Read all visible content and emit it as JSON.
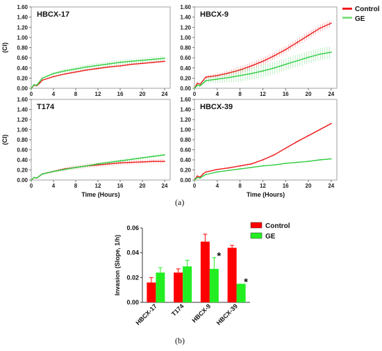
{
  "figure_labels": {
    "a": "(a)",
    "b": "(b)"
  },
  "colors": {
    "control": "#ee1c1c",
    "ge": "#2ecc40",
    "bar_control": "#ff0000",
    "bar_ge": "#22ee22"
  },
  "legend_top": [
    {
      "label": "Control",
      "color": "#ee1c1c"
    },
    {
      "label": "GE",
      "color": "#7fe07f"
    }
  ],
  "legend_bottom": [
    {
      "label": "Control",
      "color": "#ff0000"
    },
    {
      "label": "GE",
      "color": "#22ee22"
    }
  ],
  "chart_data": [
    {
      "type": "line",
      "title": "HBCX-17",
      "xlabel": "",
      "ylabel": "(CI)",
      "xlim": [
        0,
        25
      ],
      "ylim": [
        0,
        1.6
      ],
      "xticks": [
        "0",
        "4",
        "8",
        "12",
        "16",
        "20",
        "24"
      ],
      "yticks": [
        "1.60",
        "1.40",
        "1.20",
        "1.00",
        "0.80",
        "0.60",
        "0.40",
        "0.20",
        "0.00"
      ],
      "series": [
        {
          "name": "Control",
          "x": [
            0,
            0.5,
            1,
            1.5,
            2,
            4,
            6,
            8,
            10,
            12,
            14,
            16,
            18,
            20,
            22,
            24
          ],
          "values": [
            0,
            0.06,
            0.05,
            0.1,
            0.16,
            0.23,
            0.28,
            0.32,
            0.36,
            0.39,
            0.42,
            0.44,
            0.47,
            0.49,
            0.51,
            0.53
          ],
          "err": 0.02
        },
        {
          "name": "GE",
          "x": [
            0,
            0.5,
            1,
            1.5,
            2,
            4,
            6,
            8,
            10,
            12,
            14,
            16,
            18,
            20,
            22,
            24
          ],
          "values": [
            0,
            0.07,
            0.06,
            0.13,
            0.2,
            0.29,
            0.34,
            0.38,
            0.42,
            0.45,
            0.48,
            0.51,
            0.53,
            0.55,
            0.57,
            0.59
          ],
          "err": 0.05
        }
      ]
    },
    {
      "type": "line",
      "title": "HBCX-9",
      "xlabel": "",
      "ylabel": "",
      "xlim": [
        0,
        25
      ],
      "ylim": [
        0,
        1.6
      ],
      "xticks": [
        "0",
        "4",
        "8",
        "12",
        "16",
        "20",
        "24"
      ],
      "yticks": [
        "1.60",
        "1.40",
        "1.20",
        "1.00",
        "0.80",
        "0.60",
        "0.40",
        "0.20",
        "0.00"
      ],
      "series": [
        {
          "name": "Control",
          "x": [
            0,
            0.5,
            1,
            1.5,
            2,
            4,
            6,
            8,
            10,
            12,
            14,
            16,
            18,
            20,
            22,
            24
          ],
          "values": [
            0,
            0.1,
            0.08,
            0.15,
            0.22,
            0.25,
            0.3,
            0.36,
            0.44,
            0.53,
            0.64,
            0.76,
            0.9,
            1.04,
            1.18,
            1.28
          ],
          "err": 0.07
        },
        {
          "name": "GE",
          "x": [
            0,
            0.5,
            1,
            1.5,
            2,
            4,
            6,
            8,
            10,
            12,
            14,
            16,
            18,
            20,
            22,
            24
          ],
          "values": [
            0,
            0.06,
            0.05,
            0.1,
            0.15,
            0.18,
            0.21,
            0.25,
            0.29,
            0.34,
            0.4,
            0.47,
            0.54,
            0.61,
            0.67,
            0.71
          ],
          "err": 0.12
        }
      ]
    },
    {
      "type": "line",
      "title": "T174",
      "xlabel": "Time (Hours)",
      "ylabel": "(CI)",
      "xlim": [
        0,
        25
      ],
      "ylim": [
        0,
        1.6
      ],
      "xticks": [
        "0",
        "4",
        "8",
        "12",
        "16",
        "20",
        "24"
      ],
      "yticks": [
        "1.60",
        "1.40",
        "1.20",
        "1.00",
        "0.80",
        "0.60",
        "0.40",
        "0.20",
        "0.00"
      ],
      "series": [
        {
          "name": "Control",
          "x": [
            0,
            0.5,
            1,
            1.5,
            2,
            4,
            6,
            8,
            10,
            12,
            14,
            16,
            18,
            20,
            22,
            24
          ],
          "values": [
            0,
            0.05,
            0.04,
            0.08,
            0.12,
            0.17,
            0.22,
            0.25,
            0.28,
            0.3,
            0.32,
            0.34,
            0.35,
            0.36,
            0.37,
            0.37
          ],
          "err": 0.04
        },
        {
          "name": "GE",
          "x": [
            0,
            0.5,
            1,
            1.5,
            2,
            4,
            6,
            8,
            10,
            12,
            14,
            16,
            18,
            20,
            22,
            24
          ],
          "values": [
            0,
            0.05,
            0.04,
            0.08,
            0.12,
            0.17,
            0.21,
            0.25,
            0.28,
            0.32,
            0.35,
            0.38,
            0.41,
            0.44,
            0.47,
            0.5
          ],
          "err": 0.03
        }
      ]
    },
    {
      "type": "line",
      "title": "HBCX-39",
      "xlabel": "Time (Hours)",
      "ylabel": "",
      "xlim": [
        0,
        25
      ],
      "ylim": [
        0,
        1.6
      ],
      "xticks": [
        "0",
        "4",
        "8",
        "12",
        "16",
        "20",
        "24"
      ],
      "yticks": [
        "1.60",
        "1.40",
        "1.20",
        "1.00",
        "0.80",
        "0.60",
        "0.40",
        "0.20",
        "0.00"
      ],
      "series": [
        {
          "name": "Control",
          "x": [
            0,
            0.5,
            1,
            1.5,
            2,
            4,
            6,
            8,
            10,
            12,
            14,
            16,
            18,
            20,
            22,
            24
          ],
          "values": [
            0,
            0.08,
            0.06,
            0.12,
            0.16,
            0.21,
            0.24,
            0.28,
            0.32,
            0.4,
            0.5,
            0.63,
            0.76,
            0.88,
            1.0,
            1.12
          ],
          "err": 0.02
        },
        {
          "name": "GE",
          "x": [
            0,
            0.5,
            1,
            1.5,
            2,
            4,
            6,
            8,
            10,
            12,
            14,
            16,
            18,
            20,
            22,
            24
          ],
          "values": [
            0,
            0.05,
            0.04,
            0.08,
            0.11,
            0.16,
            0.19,
            0.22,
            0.25,
            0.28,
            0.3,
            0.33,
            0.35,
            0.37,
            0.4,
            0.42
          ],
          "err": 0.01
        }
      ]
    },
    {
      "type": "bar",
      "title": "",
      "xlabel": "",
      "ylabel": "Invasion (Slope, 1/h)",
      "categories": [
        "HBCX-17",
        "T174",
        "HBCX-9",
        "HBCX-39"
      ],
      "ylim": [
        0,
        0.06
      ],
      "yticks": [
        "0.06",
        "0.04",
        "0.02",
        "0.00"
      ],
      "series": [
        {
          "name": "Control",
          "values": [
            0.016,
            0.024,
            0.049,
            0.044
          ],
          "err": [
            0.004,
            0.003,
            0.006,
            0.002
          ]
        },
        {
          "name": "GE",
          "values": [
            0.024,
            0.029,
            0.027,
            0.015
          ],
          "err": [
            0.004,
            0.005,
            0.009,
            0.0
          ]
        }
      ],
      "annotations": [
        {
          "category": "HBCX-9",
          "text": "*"
        },
        {
          "category": "HBCX-39",
          "text": "*"
        }
      ]
    }
  ]
}
